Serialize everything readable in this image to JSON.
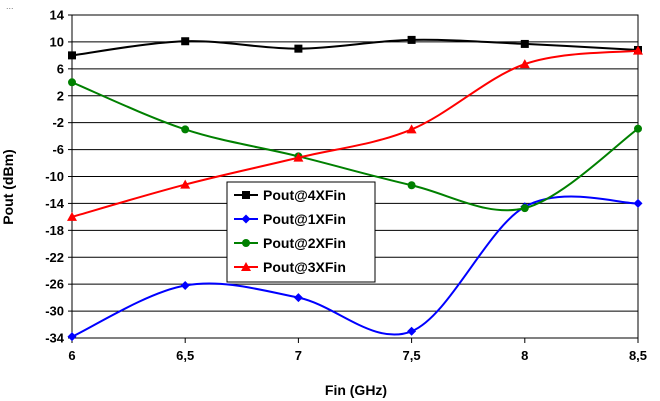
{
  "corner_label": "...",
  "chart_data": {
    "type": "line",
    "title": "",
    "xlabel": "Fin (GHz)",
    "ylabel": "Pout (dBm)",
    "xlim": [
      6,
      8.5
    ],
    "ylim": [
      -34,
      14
    ],
    "x": [
      6,
      6.5,
      7,
      7.5,
      8,
      8.5
    ],
    "x_tick_labels": [
      "6",
      "6,5",
      "7",
      "7,5",
      "8",
      "8,5"
    ],
    "y_ticks": [
      14,
      10,
      6,
      2,
      -2,
      -6,
      -10,
      -14,
      -18,
      -22,
      -26,
      -30,
      -34
    ],
    "grid": "horizontal",
    "legend_position": "center-left",
    "series": [
      {
        "name": "Pout@4XFin",
        "color": "#000000",
        "marker": "square",
        "values": [
          8.0,
          10.1,
          9.0,
          10.3,
          9.7,
          8.8
        ]
      },
      {
        "name": "Pout@1XFin",
        "color": "#0000ff",
        "marker": "diamond",
        "values": [
          -33.8,
          -26.2,
          -28.0,
          -33.0,
          -14.5,
          -14.0
        ]
      },
      {
        "name": "Pout@2XFin",
        "color": "#008000",
        "marker": "circle",
        "values": [
          4.0,
          -3.0,
          -7.0,
          -11.3,
          -14.7,
          -2.9
        ]
      },
      {
        "name": "Pout@3XFin",
        "color": "#ff0000",
        "marker": "triangle",
        "values": [
          -16.0,
          -11.2,
          -7.2,
          -3.0,
          6.7,
          8.7
        ]
      }
    ]
  }
}
